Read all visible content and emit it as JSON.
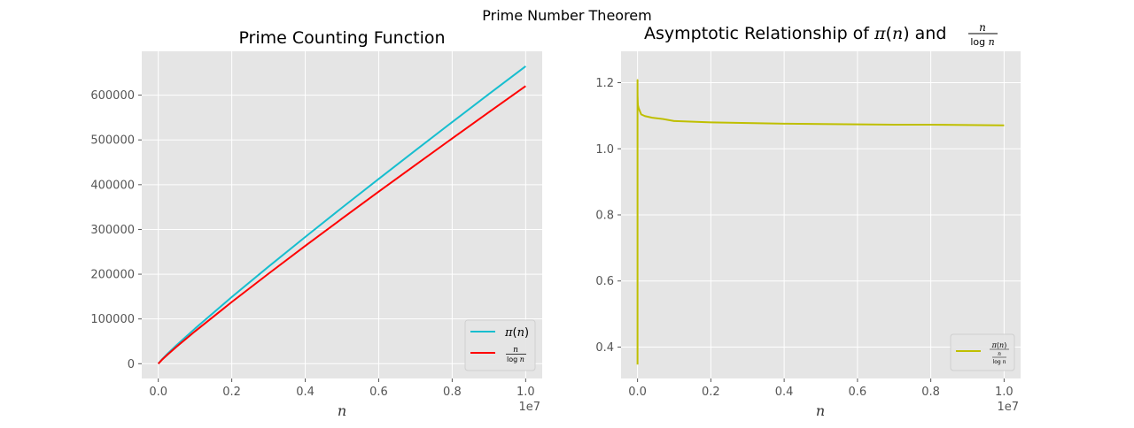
{
  "figure_title": "Prime Number Theorem",
  "chart_data": [
    {
      "type": "line",
      "title": "Prime Counting Function",
      "xlabel": "n",
      "ylabel": "",
      "x_offset_label": "1e7",
      "xlim": [
        -450000,
        10450000
      ],
      "ylim": [
        -33000,
        698000
      ],
      "xticks": [
        0,
        2000000,
        4000000,
        6000000,
        8000000,
        10000000
      ],
      "xtick_labels": [
        "0.0",
        "0.2",
        "0.4",
        "0.6",
        "0.8",
        "1.0"
      ],
      "yticks": [
        0,
        100000,
        200000,
        300000,
        400000,
        500000,
        600000
      ],
      "ytick_labels": [
        "0",
        "100000",
        "200000",
        "300000",
        "400000",
        "500000",
        "600000"
      ],
      "grid": true,
      "legend_position": "lower-right",
      "series": [
        {
          "name": "π(n)",
          "color": "#17becf",
          "x": [
            0,
            100000,
            250000,
            500000,
            1000000,
            2000000,
            3000000,
            4000000,
            5000000,
            6000000,
            7000000,
            8000000,
            9000000,
            10000000
          ],
          "y": [
            0,
            9592,
            22044,
            41538,
            78498,
            148933,
            216816,
            283146,
            348513,
            412849,
            476648,
            539777,
            602489,
            664579
          ]
        },
        {
          "name": "n / log n",
          "color": "#ff0000",
          "x": [
            0,
            100000,
            250000,
            500000,
            1000000,
            2000000,
            3000000,
            4000000,
            5000000,
            6000000,
            7000000,
            8000000,
            9000000,
            10000000
          ],
          "y": [
            0,
            8686,
            20119,
            38102,
            72382,
            137849,
            201152,
            263127,
            324150,
            384436,
            444084,
            503282,
            562014,
            620421
          ]
        }
      ]
    },
    {
      "type": "line",
      "title": "Asymptotic Relationship of π(n) and n / log n",
      "xlabel": "n",
      "ylabel": "",
      "x_offset_label": "1e7",
      "xlim": [
        -450000,
        10450000
      ],
      "ylim": [
        0.305,
        1.295
      ],
      "xticks": [
        0,
        2000000,
        4000000,
        6000000,
        8000000,
        10000000
      ],
      "xtick_labels": [
        "0.0",
        "0.2",
        "0.4",
        "0.6",
        "0.8",
        "1.0"
      ],
      "yticks": [
        0.4,
        0.6,
        0.8,
        1.0,
        1.2
      ],
      "ytick_labels": [
        "0.4",
        "0.6",
        "0.8",
        "1.0",
        "1.2"
      ],
      "grid": true,
      "legend_position": "lower-right",
      "series": [
        {
          "name": "π(n) / (n / log n)",
          "color": "#bfbf00",
          "x": [
            2,
            3,
            5,
            10,
            20,
            50,
            100,
            300,
            1000,
            3000,
            10000,
            30000,
            100000,
            200000,
            400000,
            700000,
            1000000,
            2000000,
            3000000,
            4000000,
            5000000,
            6000000,
            7000000,
            8000000,
            9000000,
            10000000
          ],
          "y": [
            0.347,
            1.099,
            1.208,
            0.921,
            1.198,
            1.174,
            1.151,
            1.178,
            1.16,
            1.155,
            1.132,
            1.123,
            1.104,
            1.099,
            1.094,
            1.09,
            1.084,
            1.08,
            1.078,
            1.076,
            1.075,
            1.074,
            1.073,
            1.073,
            1.072,
            1.071
          ]
        }
      ]
    }
  ]
}
